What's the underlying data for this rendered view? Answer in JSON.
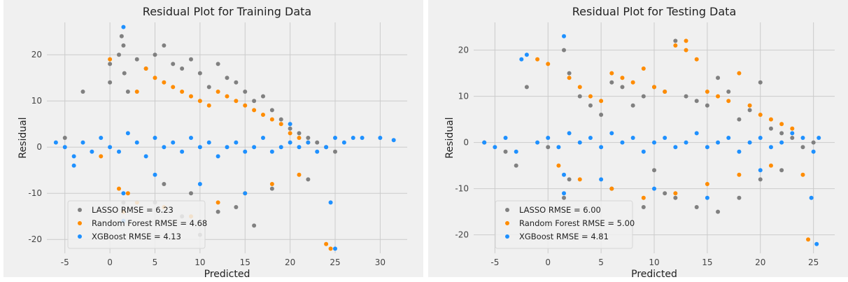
{
  "chart_data": [
    {
      "type": "scatter",
      "title": "Residual Plot for Training Data",
      "xlabel": "Predicted",
      "ylabel": "Residual",
      "xlim": [
        -7,
        33
      ],
      "ylim": [
        -23,
        27
      ],
      "xticks": [
        -5,
        0,
        5,
        10,
        15,
        20,
        25,
        30
      ],
      "yticks": [
        -20,
        -10,
        0,
        10,
        20
      ],
      "grid": true,
      "legend_position": "lower-left",
      "series": [
        {
          "name": "LASSO RMSE = 6.23",
          "color": "#808080",
          "x": [
            0,
            0,
            1,
            1.3,
            1.5,
            1.6,
            2,
            3,
            4,
            5,
            5,
            6,
            7,
            8,
            9,
            10,
            11,
            12,
            13,
            14,
            15,
            16,
            17,
            18,
            19,
            20,
            21,
            22,
            23,
            24,
            25,
            -3,
            -5,
            8,
            12,
            16,
            10,
            1.5,
            6,
            9,
            14,
            18,
            22
          ],
          "y": [
            18,
            14,
            20,
            24,
            22,
            16,
            12,
            19,
            17,
            20,
            -12,
            22,
            18,
            17,
            19,
            16,
            13,
            18,
            15,
            14,
            12,
            10,
            11,
            8,
            6,
            4,
            3,
            2,
            1,
            0,
            -1,
            12,
            2,
            -15,
            -14,
            -17,
            -19,
            -12,
            -8,
            -10,
            -13,
            -9,
            -7
          ]
        },
        {
          "name": "Random Forest RMSE = 4.68",
          "color": "#FF8C00",
          "x": [
            -1,
            0,
            1,
            2,
            3,
            4,
            5,
            6,
            7,
            8,
            9,
            10,
            11,
            12,
            13,
            14,
            15,
            16,
            17,
            18,
            19,
            20,
            21,
            22,
            24,
            24.5,
            1.5,
            3,
            6,
            9,
            12,
            15,
            18,
            21
          ],
          "y": [
            -2,
            19,
            -9,
            -10,
            12,
            17,
            15,
            14,
            13,
            12,
            11,
            10,
            9,
            12,
            11,
            10,
            9,
            8,
            7,
            6,
            5,
            3,
            2,
            1,
            -21,
            -22,
            -14,
            -12,
            -13,
            -15,
            -12,
            -10,
            -8,
            -6
          ]
        },
        {
          "name": "XGBoost RMSE = 4.13",
          "color": "#1E90FF",
          "x": [
            -6,
            -5,
            -4,
            -3,
            -2,
            -1,
            0,
            1,
            1.5,
            1.5,
            1.5,
            2,
            3,
            4,
            5,
            6,
            7,
            8,
            9,
            10,
            11,
            12,
            13,
            14,
            15,
            16,
            17,
            18,
            19,
            20,
            21,
            22,
            23,
            24,
            25,
            26,
            27,
            28,
            30,
            31.5,
            24.5,
            25,
            -4,
            5,
            10,
            15,
            20
          ],
          "y": [
            1,
            0,
            -2,
            1,
            -1,
            2,
            0,
            -1,
            26,
            -10,
            -16,
            3,
            1,
            -2,
            2,
            0,
            1,
            -1,
            2,
            0,
            1,
            -2,
            0,
            1,
            -1,
            0,
            2,
            -1,
            0,
            1,
            0,
            1,
            -1,
            0,
            2,
            1,
            2,
            2,
            2,
            1.5,
            -12,
            -22,
            -4,
            -6,
            -8,
            -10,
            5
          ]
        }
      ]
    },
    {
      "type": "scatter",
      "title": "Residual Plot for Testing Data",
      "xlabel": "Predicted",
      "ylabel": "Residual",
      "xlim": [
        -7,
        27
      ],
      "ylim": [
        -24,
        26
      ],
      "xticks": [
        -5,
        0,
        5,
        10,
        15,
        20,
        25
      ],
      "yticks": [
        -20,
        -10,
        0,
        10,
        20
      ],
      "grid": true,
      "legend_position": "lower-left",
      "series": [
        {
          "name": "LASSO RMSE = 6.00",
          "color": "#808080",
          "x": [
            -6,
            -4,
            -2,
            0,
            1.5,
            1.5,
            2,
            3,
            4,
            5,
            6,
            7,
            8,
            9,
            10,
            11,
            12,
            13,
            14,
            15,
            16,
            17,
            18,
            19,
            20,
            21,
            22,
            23,
            24,
            25,
            -3,
            2,
            6,
            10,
            12,
            14,
            16,
            18,
            20,
            22,
            9,
            11
          ],
          "y": [
            0,
            -2,
            12,
            -1,
            20,
            -12,
            15,
            10,
            8,
            6,
            13,
            12,
            8,
            10,
            12,
            11,
            22,
            10,
            9,
            8,
            14,
            11,
            5,
            7,
            13,
            3,
            2,
            1,
            -1,
            0,
            -5,
            -8,
            -10,
            -6,
            -12,
            -14,
            -15,
            -12,
            -8,
            -6,
            -14,
            -11
          ]
        },
        {
          "name": "Random Forest RMSE = 5.00",
          "color": "#FF8C00",
          "x": [
            -1,
            0,
            1,
            2,
            3,
            4,
            5,
            6,
            7,
            8,
            9,
            10,
            11,
            12,
            13,
            14,
            15,
            16,
            17,
            18,
            19,
            20,
            21,
            22,
            23,
            24,
            24.5,
            13,
            3,
            6,
            9,
            12,
            15,
            18,
            21
          ],
          "y": [
            18,
            17,
            -5,
            14,
            12,
            10,
            9,
            15,
            14,
            13,
            16,
            12,
            11,
            21,
            20,
            18,
            11,
            10,
            9,
            15,
            8,
            6,
            5,
            4,
            3,
            -7,
            -21,
            22,
            -8,
            -10,
            -12,
            -11,
            -9,
            -7,
            -5
          ]
        },
        {
          "name": "XGBoost RMSE = 4.81",
          "color": "#1E90FF",
          "x": [
            -6,
            -5,
            -4,
            -3,
            -2,
            -1,
            0,
            1,
            1.5,
            1.5,
            1.5,
            2,
            3,
            4,
            5,
            6,
            7,
            8,
            9,
            10,
            11,
            12,
            13,
            14,
            15,
            16,
            17,
            18,
            19,
            20,
            21,
            22,
            23,
            24,
            25,
            25.5,
            25.3,
            24.8,
            -2.5,
            5,
            10,
            15,
            20
          ],
          "y": [
            0,
            -1,
            1,
            -2,
            19,
            0,
            1,
            -1,
            23,
            -11,
            -7,
            2,
            0,
            1,
            -1,
            2,
            0,
            1,
            -2,
            0,
            1,
            -1,
            0,
            2,
            -1,
            0,
            1,
            -2,
            0,
            1,
            -1,
            0,
            2,
            1,
            -2,
            1,
            -22,
            -12,
            18,
            -8,
            -10,
            -12,
            -6
          ]
        }
      ]
    }
  ]
}
